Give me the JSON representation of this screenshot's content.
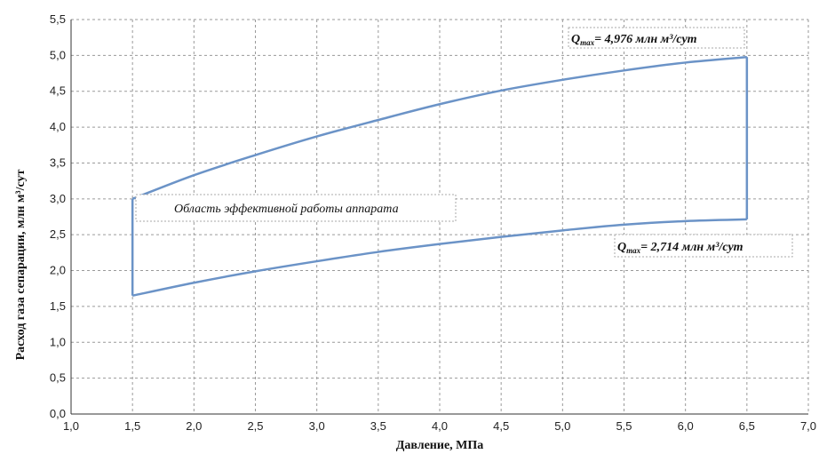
{
  "chart_data": {
    "type": "line",
    "xlabel": "Давление, МПа",
    "ylabel": "Расход газа сепарации, млн м³/сут",
    "xlim": [
      1.0,
      7.0
    ],
    "ylim": [
      0.0,
      5.5
    ],
    "x_ticks": [
      "1,0",
      "1,5",
      "2,0",
      "2,5",
      "3,0",
      "3,5",
      "4,0",
      "4,5",
      "5,0",
      "5,5",
      "6,0",
      "6,5",
      "7,0"
    ],
    "y_ticks": [
      "0,0",
      "0,5",
      "1,0",
      "1,5",
      "2,0",
      "2,5",
      "3,0",
      "3,5",
      "4,0",
      "4,5",
      "5,0",
      "5,5"
    ],
    "grid": true,
    "line_color": "#6b93c7",
    "series": [
      {
        "x": [
          1.5,
          2.0,
          2.5,
          3.0,
          3.5,
          4.0,
          4.5,
          5.0,
          5.5,
          6.0,
          6.5
        ],
        "values": [
          3.0,
          3.33,
          3.61,
          3.87,
          4.1,
          4.32,
          4.51,
          4.66,
          4.79,
          4.9,
          4.976
        ]
      },
      {
        "x": [
          1.5,
          2.0,
          2.5,
          3.0,
          3.5,
          4.0,
          4.5,
          5.0,
          5.5,
          6.0,
          6.5
        ],
        "values": [
          1.65,
          1.83,
          1.99,
          2.13,
          2.26,
          2.37,
          2.47,
          2.56,
          2.64,
          2.69,
          2.714
        ]
      },
      {
        "x": [
          1.5,
          1.5
        ],
        "values": [
          1.65,
          3.0
        ]
      },
      {
        "x": [
          6.5,
          6.5
        ],
        "values": [
          2.714,
          4.976
        ]
      }
    ],
    "annotations": {
      "region": "Область эффективной работы аппарата",
      "upper_q": "Q",
      "upper_sub": "max",
      "upper_text": "= 4,976 млн м³/сут",
      "lower_q": "Q",
      "lower_sub": "max",
      "lower_text": "= 2,714 млн м³/сут"
    }
  }
}
